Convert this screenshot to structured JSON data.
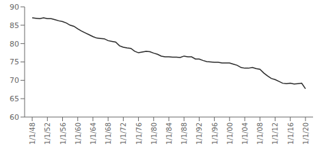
{
  "chart_data": {
    "type": "line",
    "x": [
      1948,
      1949,
      1950,
      1951,
      1952,
      1953,
      1954,
      1955,
      1956,
      1957,
      1958,
      1959,
      1960,
      1961,
      1962,
      1963,
      1964,
      1965,
      1966,
      1967,
      1968,
      1969,
      1970,
      1971,
      1972,
      1973,
      1974,
      1975,
      1976,
      1977,
      1978,
      1979,
      1980,
      1981,
      1982,
      1983,
      1984,
      1985,
      1986,
      1987,
      1988,
      1989,
      1990,
      1991,
      1992,
      1993,
      1994,
      1995,
      1996,
      1997,
      1998,
      1999,
      2000,
      2001,
      2002,
      2003,
      2004,
      2005,
      2006,
      2007,
      2008,
      2009,
      2010,
      2011,
      2012,
      2013,
      2014,
      2015,
      2016,
      2017,
      2018,
      2019,
      2020
    ],
    "values": [
      87.0,
      86.9,
      86.8,
      87.0,
      86.8,
      86.8,
      86.5,
      86.2,
      86.0,
      85.6,
      85.0,
      84.7,
      84.0,
      83.4,
      82.9,
      82.4,
      81.9,
      81.5,
      81.4,
      81.3,
      80.8,
      80.6,
      80.4,
      79.4,
      79.0,
      78.8,
      78.7,
      77.9,
      77.5,
      77.7,
      77.9,
      77.8,
      77.4,
      77.1,
      76.6,
      76.4,
      76.4,
      76.3,
      76.3,
      76.2,
      76.6,
      76.4,
      76.4,
      75.8,
      75.8,
      75.4,
      75.1,
      75.0,
      74.9,
      74.9,
      74.7,
      74.7,
      74.7,
      74.4,
      74.1,
      73.5,
      73.3,
      73.3,
      73.5,
      73.2,
      73.0,
      72.0,
      71.2,
      70.5,
      70.2,
      69.7,
      69.2,
      69.1,
      69.2,
      69.0,
      69.1,
      69.2,
      67.7
    ],
    "color": "#2b2b2b",
    "xlim": [
      1946,
      2022
    ],
    "xticks": [
      {
        "value": 1948,
        "label": "1/1/48"
      },
      {
        "value": 1952,
        "label": "1/1/52"
      },
      {
        "value": 1956,
        "label": "1/1/56"
      },
      {
        "value": 1960,
        "label": "1/1/60"
      },
      {
        "value": 1964,
        "label": "1/1/64"
      },
      {
        "value": 1968,
        "label": "1/1/68"
      },
      {
        "value": 1972,
        "label": "1/1/72"
      },
      {
        "value": 1976,
        "label": "1/1/76"
      },
      {
        "value": 1980,
        "label": "1/1/80"
      },
      {
        "value": 1984,
        "label": "1/1/84"
      },
      {
        "value": 1988,
        "label": "1/1/88"
      },
      {
        "value": 1992,
        "label": "1/1/92"
      },
      {
        "value": 1996,
        "label": "1/1/96"
      },
      {
        "value": 2000,
        "label": "1/1/00"
      },
      {
        "value": 2004,
        "label": "1/1/04"
      },
      {
        "value": 2008,
        "label": "1/1/08"
      },
      {
        "value": 2012,
        "label": "1/1/12"
      },
      {
        "value": 2016,
        "label": "1/1/16"
      },
      {
        "value": 2020,
        "label": "1/1/20"
      }
    ],
    "ylim": [
      60,
      90
    ],
    "yticks": [
      60,
      65,
      70,
      75,
      80,
      85,
      90
    ],
    "grid": false
  }
}
